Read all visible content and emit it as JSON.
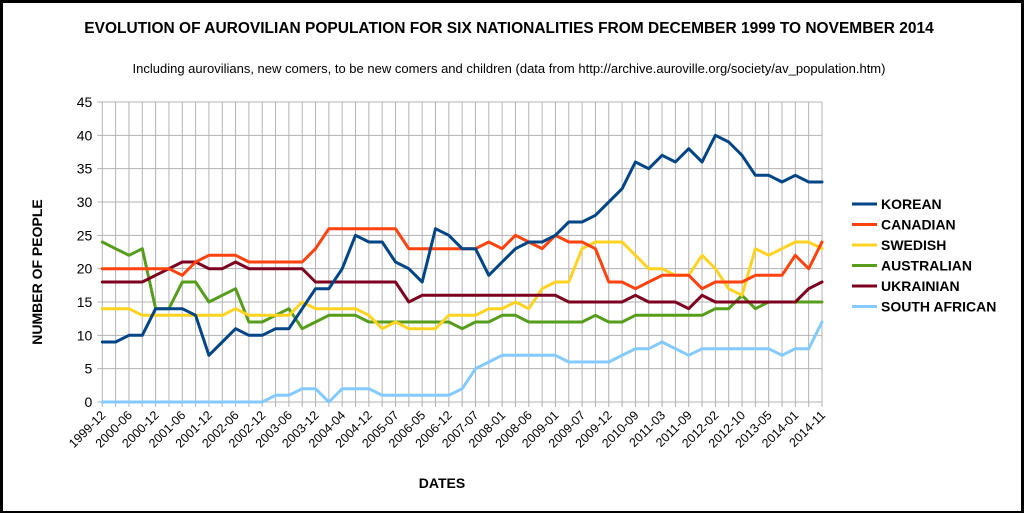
{
  "chart_data": {
    "type": "line",
    "title": "EVOLUTION OF AUROVILIAN POPULATION FOR SIX NATIONALITIES FROM DECEMBER 1999 TO NOVEMBER 2014",
    "subtitle": "Including aurovilians, new comers, to be new comers and children (data from http://archive.auroville.org/society/av_population.htm)",
    "xlabel": "DATES",
    "ylabel": "NUMBER OF PEOPLE",
    "ylim": [
      0,
      45
    ],
    "yticks": [
      "0",
      "5",
      "10",
      "15",
      "20",
      "25",
      "30",
      "35",
      "40",
      "45"
    ],
    "ytick_values": [
      0,
      5,
      10,
      15,
      20,
      25,
      30,
      35,
      40,
      45
    ],
    "grid": true,
    "legend_position": "right",
    "x_tick_labels": [
      "1999-12",
      "2000-06",
      "2000-12",
      "2001-06",
      "2001-12",
      "2002-06",
      "2002-12",
      "2003-06",
      "2003-12",
      "2004-04",
      "2004-12",
      "2005-07",
      "2006-05",
      "2006-12",
      "2007-07",
      "2008-01",
      "2008-06",
      "2009-01",
      "2009-07",
      "2009-12",
      "2010-09",
      "2011-03",
      "2011-09",
      "2012-02",
      "2012-10",
      "2013-05",
      "2014-01",
      "2014-11"
    ],
    "n_points": 55,
    "series": [
      {
        "name": "KOREAN",
        "color": "#004586",
        "values": [
          9,
          9,
          10,
          10,
          14,
          14,
          14,
          13,
          7,
          9,
          11,
          10,
          10,
          11,
          11,
          14,
          17,
          17,
          20,
          25,
          24,
          24,
          21,
          20,
          18,
          26,
          25,
          23,
          23,
          19,
          21,
          23,
          24,
          24,
          25,
          27,
          27,
          28,
          30,
          32,
          36,
          35,
          37,
          36,
          38,
          36,
          40,
          39,
          37,
          34,
          34,
          33,
          34,
          33,
          33
        ]
      },
      {
        "name": "CANADIAN",
        "color": "#ff420e",
        "values": [
          20,
          20,
          20,
          20,
          20,
          20,
          19,
          21,
          22,
          22,
          22,
          21,
          21,
          21,
          21,
          21,
          23,
          26,
          26,
          26,
          26,
          26,
          26,
          23,
          23,
          23,
          23,
          23,
          23,
          24,
          23,
          25,
          24,
          23,
          25,
          24,
          24,
          23,
          18,
          18,
          17,
          18,
          19,
          19,
          19,
          17,
          18,
          18,
          18,
          19,
          19,
          19,
          22,
          20,
          24
        ]
      },
      {
        "name": "SWEDISH",
        "color": "#ffd320",
        "values": [
          14,
          14,
          14,
          13,
          13,
          13,
          13,
          13,
          13,
          13,
          14,
          13,
          13,
          13,
          13,
          15,
          14,
          14,
          14,
          14,
          13,
          11,
          12,
          11,
          11,
          11,
          13,
          13,
          13,
          14,
          14,
          15,
          14,
          17,
          18,
          18,
          23,
          24,
          24,
          24,
          22,
          20,
          20,
          19,
          19,
          22,
          20,
          17,
          16,
          23,
          22,
          23,
          24,
          24,
          23
        ]
      },
      {
        "name": "AUSTRALIAN",
        "color": "#579d1c",
        "values": [
          24,
          23,
          22,
          23,
          14,
          14,
          18,
          18,
          15,
          16,
          17,
          12,
          12,
          13,
          14,
          11,
          12,
          13,
          13,
          13,
          12,
          12,
          12,
          12,
          12,
          12,
          12,
          11,
          12,
          12,
          13,
          13,
          12,
          12,
          12,
          12,
          12,
          13,
          12,
          12,
          13,
          13,
          13,
          13,
          13,
          13,
          14,
          14,
          16,
          14,
          15,
          15,
          15,
          15,
          15
        ]
      },
      {
        "name": "UKRAINIAN",
        "color": "#7e0021",
        "values": [
          18,
          18,
          18,
          18,
          19,
          20,
          21,
          21,
          20,
          20,
          21,
          20,
          20,
          20,
          20,
          20,
          18,
          18,
          18,
          18,
          18,
          18,
          18,
          15,
          16,
          16,
          16,
          16,
          16,
          16,
          16,
          16,
          16,
          16,
          16,
          15,
          15,
          15,
          15,
          15,
          16,
          15,
          15,
          15,
          14,
          16,
          15,
          15,
          15,
          15,
          15,
          15,
          15,
          17,
          18
        ]
      },
      {
        "name": "SOUTH AFRICAN",
        "color": "#83caff",
        "values": [
          0,
          0,
          0,
          0,
          0,
          0,
          0,
          0,
          0,
          0,
          0,
          0,
          0,
          1,
          1,
          2,
          2,
          0,
          2,
          2,
          2,
          1,
          1,
          1,
          1,
          1,
          1,
          2,
          5,
          6,
          7,
          7,
          7,
          7,
          7,
          6,
          6,
          6,
          6,
          7,
          8,
          8,
          9,
          8,
          7,
          8,
          8,
          8,
          8,
          8,
          8,
          7,
          8,
          8,
          12
        ]
      }
    ]
  }
}
